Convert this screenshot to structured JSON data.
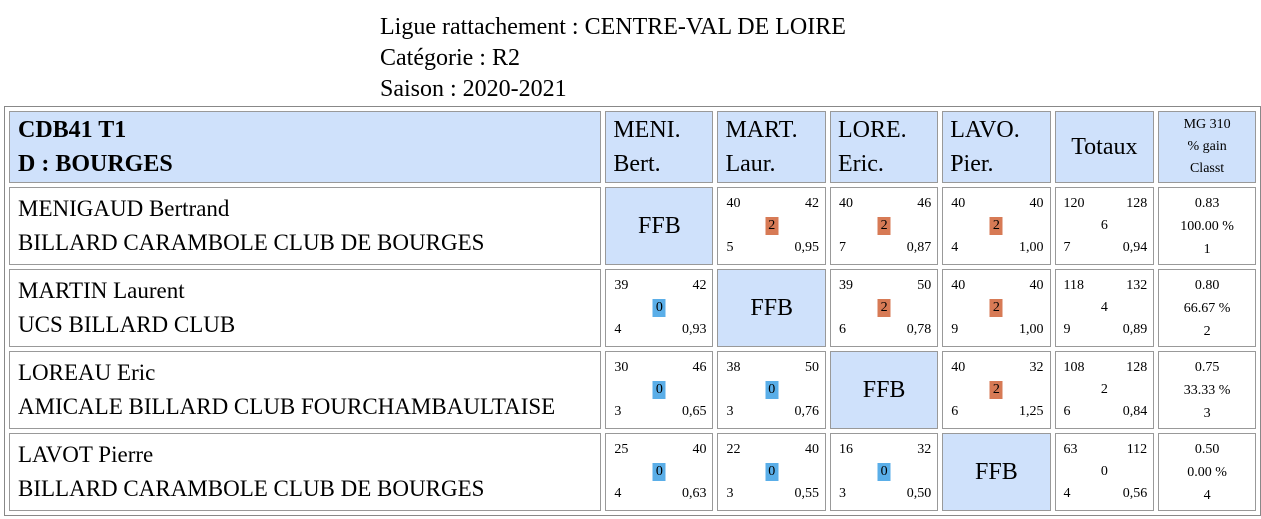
{
  "header": {
    "ligue": "Ligue rattachement : CENTRE-VAL DE LOIRE",
    "categorie": "Catégorie : R2",
    "saison": "Saison : 2020-2021"
  },
  "table": {
    "team_line1": "CDB41 T1",
    "team_line2": "D : BOURGES",
    "cols": [
      {
        "l1": "MENI.",
        "l2": "Bert."
      },
      {
        "l1": "MART.",
        "l2": "Laur."
      },
      {
        "l1": "LORE.",
        "l2": "Eric."
      },
      {
        "l1": "LAVO.",
        "l2": "Pier."
      }
    ],
    "totaux": "Totaux",
    "mg_l1": "MG 310",
    "mg_l2": "% gain",
    "mg_l3": "Classt",
    "ffb": "FFB",
    "rows": [
      {
        "name": "MENIGAUD Bertrand",
        "club": "BILLARD CARAMBOLE CLUB DE BOURGES",
        "cells": [
          null,
          {
            "tl": "40",
            "tr": "42",
            "mid": "2",
            "bl": "5",
            "br": "0,95",
            "res": "win"
          },
          {
            "tl": "40",
            "tr": "46",
            "mid": "2",
            "bl": "7",
            "br": "0,87",
            "res": "win"
          },
          {
            "tl": "40",
            "tr": "40",
            "mid": "2",
            "bl": "4",
            "br": "1,00",
            "res": "win"
          }
        ],
        "tot": {
          "tl": "120",
          "tr": "128",
          "mid": "6",
          "bl": "7",
          "br": "0,94"
        },
        "mg": {
          "a": "0.83",
          "b": "100.00 %",
          "c": "1"
        }
      },
      {
        "name": "MARTIN Laurent",
        "club": "UCS BILLARD CLUB",
        "cells": [
          {
            "tl": "39",
            "tr": "42",
            "mid": "0",
            "bl": "4",
            "br": "0,93",
            "res": "loss"
          },
          null,
          {
            "tl": "39",
            "tr": "50",
            "mid": "2",
            "bl": "6",
            "br": "0,78",
            "res": "win"
          },
          {
            "tl": "40",
            "tr": "40",
            "mid": "2",
            "bl": "9",
            "br": "1,00",
            "res": "win"
          }
        ],
        "tot": {
          "tl": "118",
          "tr": "132",
          "mid": "4",
          "bl": "9",
          "br": "0,89"
        },
        "mg": {
          "a": "0.80",
          "b": "66.67 %",
          "c": "2"
        }
      },
      {
        "name": "LOREAU Eric",
        "club": "AMICALE BILLARD CLUB FOURCHAMBAULTAISE",
        "cells": [
          {
            "tl": "30",
            "tr": "46",
            "mid": "0",
            "bl": "3",
            "br": "0,65",
            "res": "loss"
          },
          {
            "tl": "38",
            "tr": "50",
            "mid": "0",
            "bl": "3",
            "br": "0,76",
            "res": "loss"
          },
          null,
          {
            "tl": "40",
            "tr": "32",
            "mid": "2",
            "bl": "6",
            "br": "1,25",
            "res": "win"
          }
        ],
        "tot": {
          "tl": "108",
          "tr": "128",
          "mid": "2",
          "bl": "6",
          "br": "0,84"
        },
        "mg": {
          "a": "0.75",
          "b": "33.33 %",
          "c": "3"
        }
      },
      {
        "name": "LAVOT Pierre",
        "club": "BILLARD CARAMBOLE CLUB DE BOURGES",
        "cells": [
          {
            "tl": "25",
            "tr": "40",
            "mid": "0",
            "bl": "4",
            "br": "0,63",
            "res": "loss"
          },
          {
            "tl": "22",
            "tr": "40",
            "mid": "0",
            "bl": "3",
            "br": "0,55",
            "res": "loss"
          },
          {
            "tl": "16",
            "tr": "32",
            "mid": "0",
            "bl": "3",
            "br": "0,50",
            "res": "loss"
          },
          null
        ],
        "tot": {
          "tl": "63",
          "tr": "112",
          "mid": "0",
          "bl": "4",
          "br": "0,56"
        },
        "mg": {
          "a": "0.50",
          "b": "0.00 %",
          "c": "4"
        }
      }
    ]
  }
}
